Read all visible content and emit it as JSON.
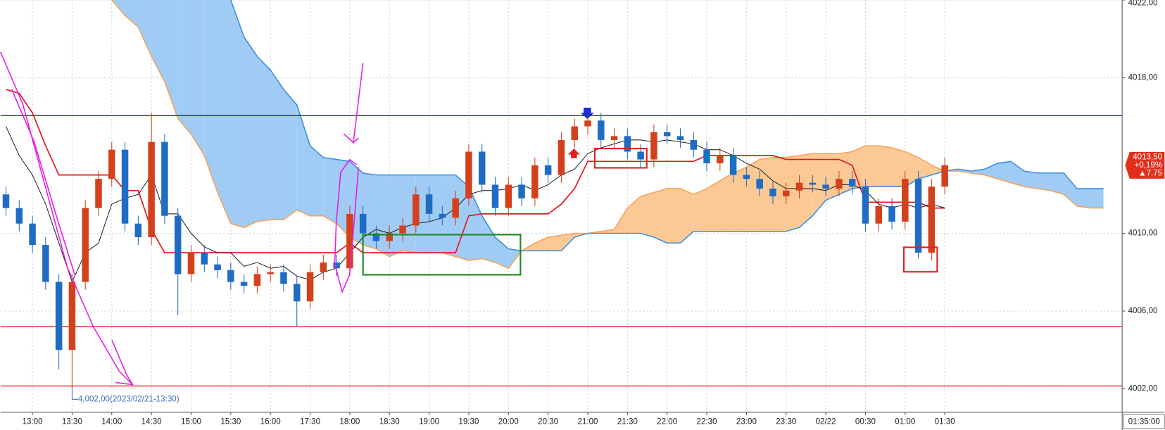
{
  "chart_data": {
    "type": "candlestick",
    "categories": [
      null,
      null,
      "13:00",
      null,
      null,
      "13:30",
      null,
      null,
      "14:00",
      null,
      null,
      "14:30",
      null,
      null,
      "15:00",
      null,
      null,
      "15:30",
      null,
      null,
      "16:00",
      null,
      null,
      "17:30",
      null,
      null,
      "18:00",
      null,
      null,
      "18:30",
      null,
      null,
      "19:00",
      null,
      null,
      "19:30",
      null,
      null,
      "20:00",
      null,
      null,
      "20:30",
      null,
      null,
      "21:00",
      null,
      null,
      "21:30",
      null,
      null,
      "22:00",
      null,
      null,
      "22:30",
      null,
      null,
      "23:00",
      null,
      null,
      "23:30",
      null,
      null,
      "02/22",
      null,
      null,
      "00:30",
      null,
      null,
      "01:00",
      null,
      null,
      "01:30",
      null,
      null,
      null,
      null,
      null,
      null,
      null,
      null,
      null,
      null,
      null,
      null
    ],
    "open": [
      4012.0,
      4011.3,
      4010.5,
      4009.4,
      4007.5,
      4004.0,
      4007.5,
      4011.3,
      4012.8,
      4014.3,
      4010.5,
      4009.8,
      4014.7,
      4010.9,
      4007.9,
      4009.0,
      4008.4,
      4008.1,
      4007.5,
      4007.3,
      4007.9,
      4008.0,
      4007.4,
      4006.5,
      4008.0,
      4008.5,
      4008.2,
      4011.0,
      4010.0,
      4009.6,
      4010.0,
      4010.4,
      4012.0,
      4011.0,
      4010.8,
      4011.8,
      4014.2,
      4012.5,
      4011.3,
      4012.5,
      4011.8,
      4013.5,
      4013.0,
      4014.8,
      4015.5,
      4015.8,
      4014.8,
      4015.0,
      4014.2,
      4013.8,
      4015.2,
      4015.0,
      4014.8,
      4014.3,
      4013.6,
      4014.0,
      4013.0,
      4012.8,
      4012.3,
      4011.9,
      4012.2,
      4012.6,
      4012.5,
      4012.3,
      4012.8,
      4012.4,
      4010.5,
      4011.4,
      4010.6,
      4012.8,
      4009.0,
      4012.4,
      null,
      null,
      null,
      null,
      null,
      null,
      null,
      null,
      null,
      null,
      null,
      null
    ],
    "high": [
      4012.4,
      4011.7,
      4010.9,
      4009.8,
      4007.9,
      4007.9,
      4011.7,
      4013.2,
      4014.7,
      4014.7,
      4010.9,
      4016.2,
      4015.1,
      4011.3,
      4009.4,
      4009.4,
      4008.8,
      4008.5,
      4007.9,
      4008.3,
      4008.4,
      4008.4,
      4007.8,
      4008.4,
      4008.9,
      4008.9,
      4011.4,
      4011.4,
      4010.4,
      4010.4,
      4010.8,
      4012.4,
      4012.4,
      4011.4,
      4012.2,
      4014.6,
      4014.6,
      4012.9,
      4012.9,
      4012.9,
      4013.9,
      4013.9,
      4015.2,
      4015.9,
      4016.0,
      4016.2,
      4015.4,
      4015.4,
      4014.6,
      4015.6,
      4015.6,
      4015.4,
      4015.2,
      4014.7,
      4014.4,
      4014.4,
      4013.4,
      4013.2,
      4012.7,
      4012.6,
      4013.0,
      4013.0,
      4012.9,
      4013.2,
      4013.2,
      4012.8,
      4011.8,
      4011.8,
      4013.2,
      4013.2,
      4012.8,
      4013.9,
      null,
      null,
      null,
      null,
      null,
      null,
      null,
      null,
      null,
      null,
      null,
      null
    ],
    "low": [
      4010.9,
      4010.1,
      4009.0,
      4007.1,
      4003.0,
      4002.0,
      4007.1,
      4010.9,
      4012.4,
      4010.1,
      4009.4,
      4009.4,
      4010.5,
      4005.8,
      4007.5,
      4008.0,
      4007.7,
      4007.1,
      4006.9,
      4006.9,
      4007.5,
      4007.0,
      4005.2,
      4006.1,
      4007.6,
      4007.8,
      4007.8,
      4009.6,
      4009.2,
      4009.2,
      4009.6,
      4010.0,
      4010.6,
      4010.4,
      4010.4,
      4011.4,
      4012.1,
      4010.9,
      4010.9,
      4011.4,
      4011.4,
      4012.6,
      4012.6,
      4014.4,
      4015.1,
      4014.4,
      4014.4,
      4013.8,
      4013.4,
      4013.4,
      4014.6,
      4014.4,
      4013.9,
      4013.2,
      4013.2,
      4012.6,
      4012.4,
      4011.9,
      4011.5,
      4011.5,
      4011.8,
      4012.1,
      4011.9,
      4011.9,
      4012.0,
      4010.1,
      4010.1,
      4010.2,
      4010.2,
      4008.7,
      4008.6,
      4012.0,
      null,
      null,
      null,
      null,
      null,
      null,
      null,
      null,
      null,
      null,
      null,
      null
    ],
    "close": [
      4011.3,
      4010.5,
      4009.4,
      4007.5,
      4004.0,
      4007.5,
      4011.3,
      4012.8,
      4014.3,
      4010.5,
      4009.8,
      4014.7,
      4010.9,
      4007.9,
      4009.0,
      4008.4,
      4008.1,
      4007.5,
      4007.3,
      4007.9,
      4008.0,
      4007.4,
      4006.5,
      4008.0,
      4008.5,
      4008.2,
      4011.0,
      4010.0,
      4009.6,
      4010.0,
      4010.4,
      4012.0,
      4011.0,
      4010.8,
      4011.8,
      4014.2,
      4012.5,
      4011.3,
      4012.5,
      4011.8,
      4013.5,
      4013.0,
      4014.8,
      4015.5,
      4015.8,
      4014.8,
      4015.0,
      4014.2,
      4013.8,
      4015.2,
      4015.0,
      4014.8,
      4014.3,
      4013.6,
      4014.0,
      4013.0,
      4012.8,
      4012.3,
      4011.9,
      4012.2,
      4012.6,
      4012.5,
      4012.3,
      4012.8,
      4012.4,
      4010.5,
      4011.4,
      4010.6,
      4012.8,
      4009.0,
      4012.4,
      4013.5,
      null,
      null,
      null,
      null,
      null,
      null,
      null,
      null,
      null,
      null,
      null,
      null
    ],
    "up_color": "#d4401c",
    "down_color": "#1f6cc4",
    "overlays": {
      "tenkan": {
        "color": "#111111",
        "values": [
          4015.5,
          4014.0,
          4013.0,
          4011.5,
          4009.5,
          4007.5,
          4009.0,
          4009.5,
          4011.5,
          4011.8,
          4012.0,
          4013.0,
          4011.0,
          4011.0,
          4010.0,
          4009.3,
          4009.0,
          4009.0,
          4008.3,
          4008.5,
          4008.2,
          4008.3,
          4007.8,
          4007.6,
          4008.0,
          4008.2,
          4009.0,
          4009.8,
          4010.2,
          4010.0,
          4010.3,
          4010.5,
          4010.6,
          4010.8,
          4011.3,
          4012.0,
          4012.2,
          4012.2,
          4012.3,
          4012.5,
          4012.2,
          4012.5,
          4013.0,
          4013.3,
          4014.1,
          4014.4,
          4014.6,
          4014.8,
          4014.8,
          4014.7,
          4014.8,
          4014.7,
          4014.6,
          4014.3,
          4014.3,
          4014.0,
          4013.6,
          4013.3,
          4012.7,
          4012.3,
          4012.3,
          4012.3,
          4012.2,
          4012.5,
          4012.5,
          4012.2,
          4011.5,
          4011.3,
          4011.5,
          4011.3,
          4011.5,
          4011.3,
          null,
          null,
          null,
          null,
          null,
          null,
          null,
          null,
          null,
          null,
          null,
          null
        ]
      },
      "kijun": {
        "color": "#e8151b",
        "values": [
          4017.4,
          4017.2,
          4016.2,
          4014.5,
          4013.0,
          4013.0,
          4013.0,
          4013.0,
          4013.0,
          4012.2,
          4012.2,
          4010.2,
          4009.0,
          4009.0,
          4009.0,
          4009.0,
          4009.0,
          4009.0,
          4009.0,
          4009.0,
          4009.0,
          4009.0,
          4009.0,
          4009.0,
          4009.0,
          4009.0,
          4009.5,
          4009.0,
          4009.0,
          4009.0,
          4009.0,
          4009.0,
          4009.0,
          4009.0,
          4009.0,
          4010.9,
          4011.0,
          4011.0,
          4011.0,
          4011.0,
          4011.0,
          4011.0,
          4011.5,
          4012.3,
          4013.7,
          4013.7,
          4013.7,
          4013.7,
          4013.7,
          4013.7,
          4013.7,
          4013.7,
          4013.7,
          4014.0,
          4014.0,
          4014.0,
          4014.0,
          4014.0,
          4014.0,
          4013.8,
          4013.8,
          4013.8,
          4013.8,
          4013.8,
          4013.5,
          4011.6,
          4011.6,
          4011.6,
          4011.6,
          4011.6,
          4011.3,
          4011.3,
          null,
          null,
          null,
          null,
          null,
          null,
          null,
          null,
          null,
          null,
          null,
          null
        ]
      },
      "span_a": {
        "color": "#f5a35c",
        "fill": "#fcc994",
        "values": [
          4023.0,
          4023.0,
          4023.0,
          4023.0,
          4023.0,
          4023.0,
          4023.0,
          4023.0,
          4022.0,
          4021.2,
          4020.6,
          4019.1,
          4017.8,
          4015.9,
          4015.1,
          4014.0,
          4012.1,
          4010.5,
          4010.3,
          4010.6,
          4010.7,
          4010.7,
          4011.2,
          4010.9,
          4010.9,
          4010.5,
          4009.8,
          4009.4,
          4009.2,
          4008.8,
          4009.1,
          4009.0,
          4009.0,
          4009.0,
          4008.8,
          4008.6,
          4008.7,
          4008.5,
          4008.2,
          4009.1,
          4009.5,
          4009.8,
          4009.9,
          4010.0,
          4010.0,
          4010.1,
          4010.2,
          4011.3,
          4011.9,
          4012.1,
          4012.3,
          4012.3,
          4012.0,
          4012.3,
          4012.7,
          4013.1,
          4013.4,
          4013.8,
          4013.9,
          4013.9,
          4014.0,
          4014.1,
          4014.1,
          4014.1,
          4014.2,
          4014.5,
          4014.5,
          4014.4,
          4014.2,
          4013.9,
          4013.5,
          4013.2,
          4013.2,
          4013.1,
          4013.0,
          4012.8,
          4012.6,
          4012.4,
          4012.3,
          4012.2,
          4012.0,
          4011.4,
          4011.3,
          4011.3
        ]
      },
      "span_b": {
        "color": "#3a8fe0",
        "fill": "#9fcbf5",
        "values": [
          4023.0,
          4023.0,
          4023.0,
          4023.0,
          4023.0,
          4023.0,
          4023.0,
          4023.0,
          4023.0,
          4023.0,
          4023.0,
          4023.0,
          4023.0,
          4023.0,
          4023.0,
          4023.0,
          4023.0,
          4022.0,
          4020.1,
          4019.1,
          4018.4,
          4017.4,
          4016.6,
          4014.5,
          4013.9,
          4013.8,
          4013.7,
          4013.1,
          4013.0,
          4013.0,
          4013.0,
          4013.0,
          4013.0,
          4013.0,
          4013.0,
          4012.4,
          4010.9,
          4009.8,
          4009.2,
          4009.1,
          4009.1,
          4009.1,
          4009.1,
          4009.8,
          4010.0,
          4010.0,
          4010.0,
          4010.0,
          4010.0,
          4009.8,
          4009.5,
          4009.5,
          4010.1,
          4010.1,
          4010.1,
          4010.1,
          4010.1,
          4010.1,
          4010.1,
          4010.1,
          4010.3,
          4010.9,
          4011.7,
          4012.0,
          4012.3,
          4012.4,
          4012.4,
          4012.4,
          4012.4,
          4012.8,
          4013.0,
          4013.2,
          4013.3,
          4013.2,
          4013.3,
          4013.6,
          4013.7,
          4013.2,
          4013.1,
          4013.1,
          4013.1,
          4012.3,
          4012.3,
          4012.3
        ]
      }
    },
    "levels": [
      {
        "value": 4016.05,
        "color": "#1515d8"
      },
      {
        "value": 4005.2,
        "color": "#e02424"
      },
      {
        "value": 4002.15,
        "color": "#e02424"
      }
    ],
    "ylim": [
      4000.8,
      4022.0
    ],
    "yticks": [
      {
        "value": 4002,
        "label": "4002,00"
      },
      {
        "value": 4006,
        "label": "4006,00"
      },
      {
        "value": 4010,
        "label": "4010,00"
      },
      {
        "value": 4018,
        "label": "4018,00"
      },
      {
        "value": 4022,
        "label": "4022,00"
      }
    ],
    "grid": true,
    "low_marker": {
      "value": 4002.0,
      "label": "4,002,00(2023/02/21-13:30)"
    },
    "price_tag": {
      "value": 4013.5,
      "label": "4013,50",
      "change": "+0,19%",
      "points": "▲7,75",
      "color": "#e0301c"
    },
    "cursor_time": "01:35:00"
  }
}
